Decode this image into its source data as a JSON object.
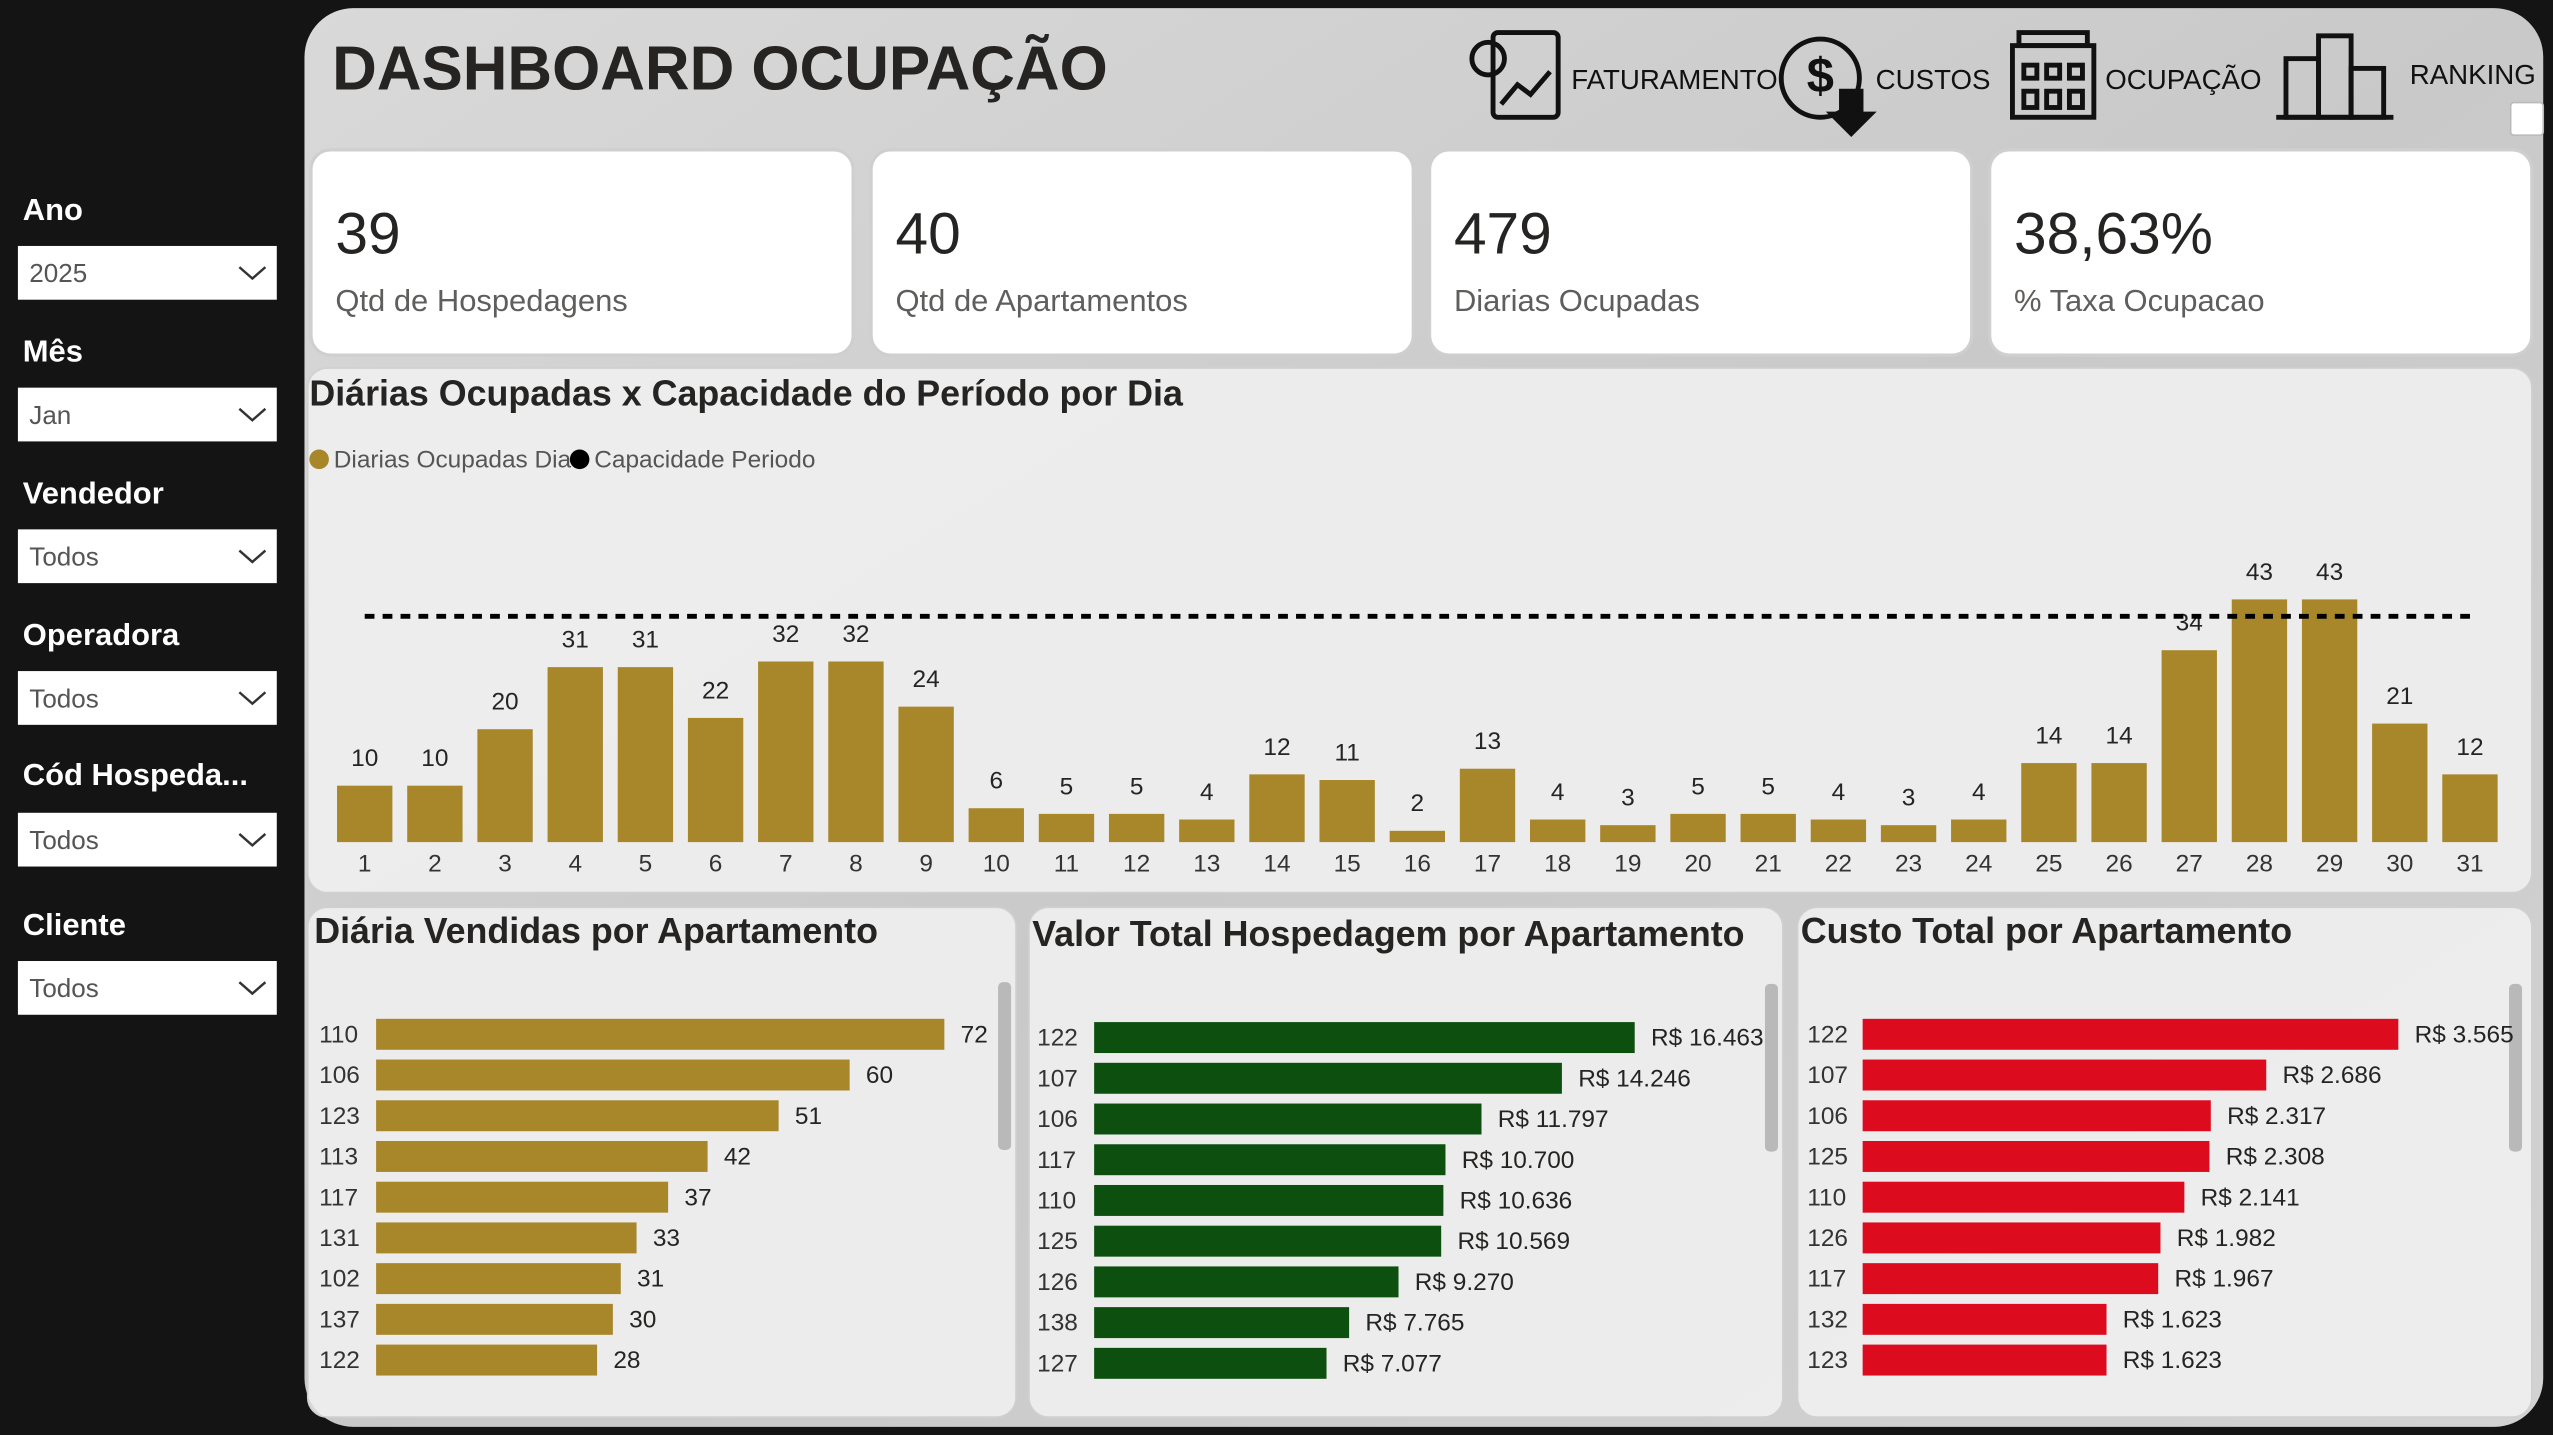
{
  "header": {
    "title": "DASHBOARD OCUPAÇÃO",
    "nav": [
      "FATURAMENTO",
      "CUSTOS",
      "OCUPAÇÃO",
      "RANKING"
    ]
  },
  "filters": [
    {
      "label": "Ano",
      "value": "2025"
    },
    {
      "label": "Mês",
      "value": "Jan"
    },
    {
      "label": "Vendedor",
      "value": "Todos"
    },
    {
      "label": "Operadora",
      "value": "Todos"
    },
    {
      "label": "Cód Hospeda...",
      "value": "Todos"
    },
    {
      "label": "Cliente",
      "value": "Todos"
    }
  ],
  "kpis": [
    {
      "value": "39",
      "label": "Qtd de Hospedagens"
    },
    {
      "value": "40",
      "label": "Qtd de Apartamentos"
    },
    {
      "value": "479",
      "label": "Diarias Ocupadas"
    },
    {
      "value": "38,63%",
      "label": "% Taxa Ocupacao"
    }
  ],
  "chart_data": [
    {
      "type": "bar",
      "title": "Diárias Ocupadas x Capacidade do Período por Dia",
      "categories": [
        1,
        2,
        3,
        4,
        5,
        6,
        7,
        8,
        9,
        10,
        11,
        12,
        13,
        14,
        15,
        16,
        17,
        18,
        19,
        20,
        21,
        22,
        23,
        24,
        25,
        26,
        27,
        28,
        29,
        30,
        31
      ],
      "series": [
        {
          "name": "Diarias Ocupadas Dia",
          "color": "#a8862a",
          "type": "bar",
          "values": [
            10,
            10,
            20,
            31,
            31,
            22,
            32,
            32,
            24,
            6,
            5,
            5,
            4,
            12,
            11,
            2,
            13,
            4,
            3,
            5,
            5,
            4,
            3,
            4,
            14,
            14,
            34,
            43,
            43,
            21,
            12
          ]
        },
        {
          "name": "Capacidade Periodo",
          "color": "#000000",
          "type": "line",
          "dashed": true,
          "values": [
            40,
            40,
            40,
            40,
            40,
            40,
            40,
            40,
            40,
            40,
            40,
            40,
            40,
            40,
            40,
            40,
            40,
            40,
            40,
            40,
            40,
            40,
            40,
            40,
            40,
            40,
            40,
            40,
            40,
            40,
            40
          ]
        }
      ]
    },
    {
      "type": "bar",
      "orientation": "horizontal",
      "title": "Diária Vendidas por Apartamento",
      "color": "#a8862a",
      "categories": [
        "110",
        "106",
        "123",
        "113",
        "117",
        "131",
        "102",
        "137",
        "122"
      ],
      "values": [
        72,
        60,
        51,
        42,
        37,
        33,
        31,
        30,
        28
      ]
    },
    {
      "type": "bar",
      "orientation": "horizontal",
      "title": "Valor Total Hospedagem por Apartamento",
      "color": "#0d4f0f",
      "categories": [
        "122",
        "107",
        "106",
        "117",
        "110",
        "125",
        "126",
        "138",
        "127"
      ],
      "values": [
        16463,
        14246,
        11797,
        10700,
        10636,
        10569,
        9270,
        7765,
        7077
      ],
      "value_labels": [
        "R$ 16.463",
        "R$ 14.246",
        "R$ 11.797",
        "R$ 10.700",
        "R$ 10.636",
        "R$ 10.569",
        "R$ 9.270",
        "R$ 7.765",
        "R$ 7.077"
      ]
    },
    {
      "type": "bar",
      "orientation": "horizontal",
      "title": "Custo Total por Apartamento",
      "color": "#dc0c1e",
      "categories": [
        "122",
        "107",
        "106",
        "125",
        "110",
        "126",
        "117",
        "132",
        "123"
      ],
      "values": [
        3565,
        2686,
        2317,
        2308,
        2141,
        1982,
        1967,
        1623,
        1623
      ],
      "value_labels": [
        "R$ 3.565",
        "R$ 2.686",
        "R$ 2.317",
        "R$ 2.308",
        "R$ 2.141",
        "R$ 1.982",
        "R$ 1.967",
        "R$ 1.623",
        "R$ 1.623"
      ]
    }
  ]
}
